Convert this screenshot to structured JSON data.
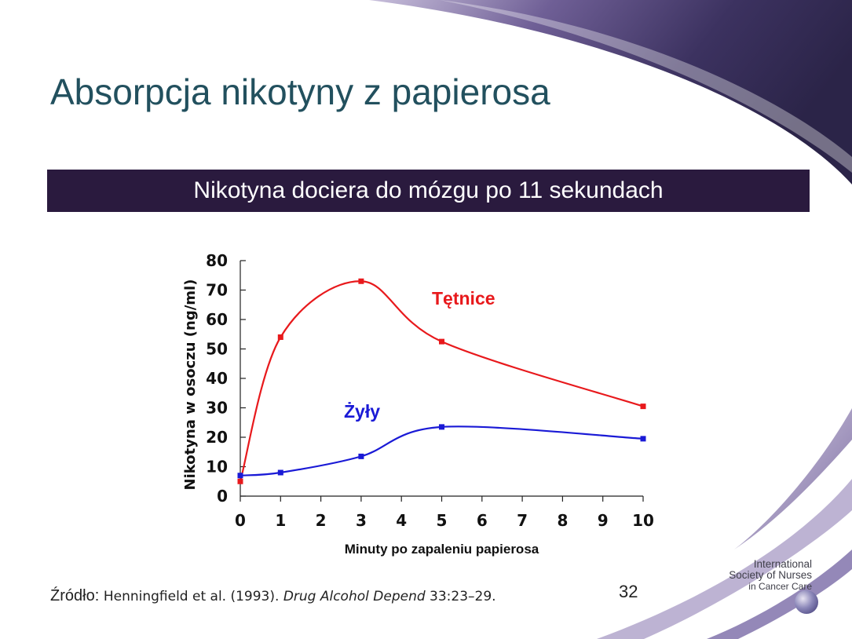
{
  "slide": {
    "title": "Absorpcja nikotyny z papierosa",
    "banner": "Nikotyna dociera do mózgu po 11 sekundach",
    "source_label": "Źródło",
    "source_authors": "Henningfield et al. (1993). ",
    "source_journal": "Drug Alcohol Depend",
    "source_rest": " 33:23–29.",
    "page_number": "32",
    "logo": {
      "line1": "International",
      "line2": "Society of Nurses",
      "line3": "in Cancer Care",
      "globe_icon": "globe-icon"
    }
  },
  "colors": {
    "title": "#22505e",
    "banner_bg": "#2a1a3e",
    "arteries": "#e8191c",
    "veins": "#1a1ad6"
  },
  "chart_data": {
    "type": "line",
    "xlabel": "Minuty po zapaleniu papierosa",
    "ylabel": "Nikotyna w osoczu (ng/ml)",
    "xlim": [
      0,
      10
    ],
    "ylim": [
      0,
      80
    ],
    "xticks": [
      0,
      1,
      2,
      3,
      4,
      5,
      6,
      7,
      8,
      9,
      10
    ],
    "yticks": [
      0,
      10,
      20,
      30,
      40,
      50,
      60,
      70,
      80
    ],
    "grid": false,
    "series": [
      {
        "name": "Tętnice",
        "color": "#e8191c",
        "x": [
          0,
          1,
          3,
          5,
          10
        ],
        "y": [
          5,
          54,
          73,
          52.5,
          30.5
        ]
      },
      {
        "name": "Żyły",
        "color": "#1a1ad6",
        "x": [
          0,
          1,
          3,
          5,
          10
        ],
        "y": [
          7,
          8,
          13.5,
          23.5,
          19.5
        ]
      }
    ]
  }
}
